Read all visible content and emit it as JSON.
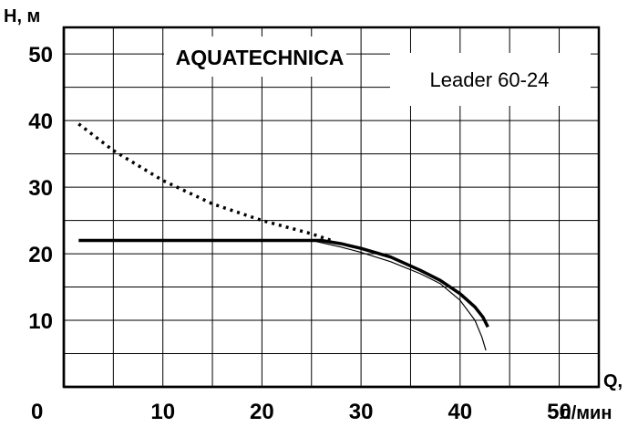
{
  "chart_data": {
    "type": "line",
    "title": "AQUATECHNICA",
    "subtitle": "Leader 60-24",
    "ylabel": "H, м",
    "xlabel_top": "Q,",
    "xlabel_bottom": "л/мин",
    "origin_label": "0",
    "xlim": [
      0,
      54
    ],
    "ylim": [
      0,
      54
    ],
    "x_ticks": [
      10,
      20,
      30,
      40,
      50
    ],
    "y_ticks": [
      10,
      20,
      30,
      40,
      50
    ],
    "grid": true,
    "series": [
      {
        "style": "dotted",
        "x": [
          1.5,
          5,
          10,
          15,
          20,
          25,
          27
        ],
        "y": [
          39.5,
          35.5,
          31,
          27.5,
          25,
          23,
          22
        ]
      },
      {
        "style": "bold",
        "x": [
          1.5,
          10,
          20,
          26,
          28,
          30,
          33,
          36,
          38,
          40,
          41.5,
          42.3,
          42.8
        ],
        "y": [
          22,
          22,
          22,
          22,
          21.5,
          20.8,
          19.5,
          17.5,
          16,
          14,
          12,
          10.5,
          9
        ]
      },
      {
        "style": "thin",
        "x": [
          25,
          28,
          30,
          33,
          36,
          38,
          40,
          41.5,
          42.2,
          42.6
        ],
        "y": [
          22,
          21,
          20.2,
          18.8,
          17,
          15.5,
          13,
          10,
          7.5,
          5.5
        ]
      }
    ]
  }
}
